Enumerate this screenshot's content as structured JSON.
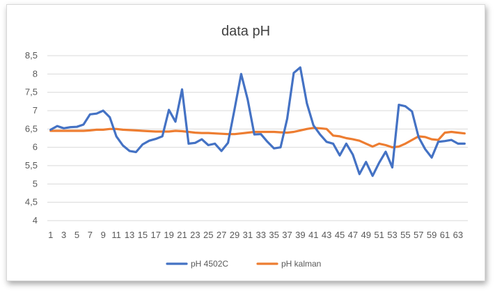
{
  "chart_data": {
    "type": "line",
    "title": "data pH",
    "xlabel": "",
    "ylabel": "",
    "ylim": [
      4,
      8.5
    ],
    "yticks": [
      "4",
      "4,5",
      "5",
      "5,5",
      "6",
      "6,5",
      "7",
      "7,5",
      "8",
      "8,5"
    ],
    "x": [
      1,
      2,
      3,
      4,
      5,
      6,
      7,
      8,
      9,
      10,
      11,
      12,
      13,
      14,
      15,
      16,
      17,
      18,
      19,
      20,
      21,
      22,
      23,
      24,
      25,
      26,
      27,
      28,
      29,
      30,
      31,
      32,
      33,
      34,
      35,
      36,
      37,
      38,
      39,
      40,
      41,
      42,
      43,
      44,
      45,
      46,
      47,
      48,
      49,
      50,
      51,
      52,
      53,
      54,
      55,
      56,
      57,
      58,
      59,
      60,
      61,
      62,
      63,
      64
    ],
    "xtick_labels": [
      "1",
      "3",
      "5",
      "7",
      "9",
      "11",
      "13",
      "15",
      "17",
      "19",
      "21",
      "23",
      "25",
      "27",
      "29",
      "31",
      "33",
      "35",
      "37",
      "39",
      "41",
      "43",
      "45",
      "47",
      "49",
      "51",
      "53",
      "55",
      "57",
      "59",
      "61",
      "63"
    ],
    "grid": true,
    "legend_position": "bottom",
    "series": [
      {
        "name": "pH 4502C",
        "color": "#4472C4",
        "values": [
          6.48,
          6.58,
          6.52,
          6.55,
          6.56,
          6.62,
          6.9,
          6.92,
          7.0,
          6.82,
          6.3,
          6.05,
          5.9,
          5.87,
          6.08,
          6.18,
          6.23,
          6.3,
          7.02,
          6.7,
          7.58,
          6.1,
          6.12,
          6.22,
          6.06,
          6.1,
          5.9,
          6.12,
          7.05,
          8.0,
          7.3,
          6.35,
          6.36,
          6.15,
          5.97,
          6.0,
          6.78,
          8.03,
          8.18,
          7.2,
          6.6,
          6.35,
          6.15,
          6.1,
          5.78,
          6.1,
          5.8,
          5.27,
          5.6,
          5.22,
          5.58,
          5.88,
          5.45,
          7.16,
          7.12,
          6.98,
          6.28,
          5.95,
          5.72,
          6.15,
          6.17,
          6.2,
          6.1,
          6.1
        ]
      },
      {
        "name": "pH kalman",
        "color": "#ED7D31",
        "values": [
          6.45,
          6.45,
          6.45,
          6.45,
          6.45,
          6.45,
          6.46,
          6.48,
          6.48,
          6.5,
          6.5,
          6.48,
          6.47,
          6.46,
          6.45,
          6.44,
          6.43,
          6.43,
          6.43,
          6.45,
          6.44,
          6.42,
          6.4,
          6.39,
          6.39,
          6.38,
          6.37,
          6.36,
          6.36,
          6.38,
          6.4,
          6.42,
          6.42,
          6.42,
          6.42,
          6.41,
          6.4,
          6.42,
          6.46,
          6.5,
          6.53,
          6.52,
          6.5,
          6.32,
          6.3,
          6.25,
          6.22,
          6.18,
          6.1,
          6.02,
          6.1,
          6.06,
          6.0,
          6.02,
          6.1,
          6.2,
          6.3,
          6.28,
          6.22,
          6.2,
          6.4,
          6.42,
          6.4,
          6.38
        ]
      }
    ]
  }
}
